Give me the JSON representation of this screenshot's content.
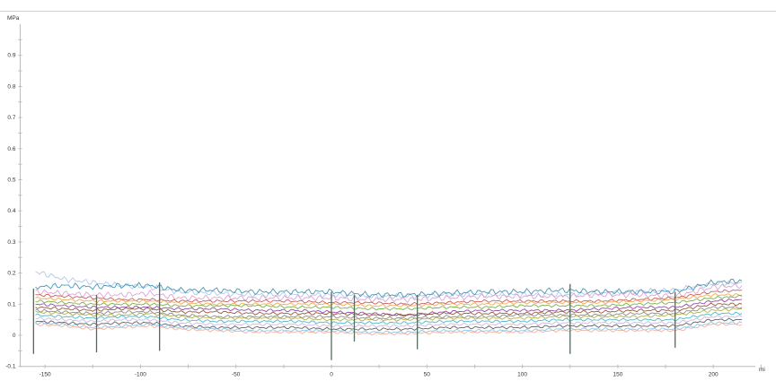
{
  "chart_data": {
    "type": "line",
    "title": "",
    "ylabel": "MPa",
    "xlabel": "mi",
    "xlim": [
      -163,
      222
    ],
    "ylim": [
      -0.1,
      1.0
    ],
    "grid": false,
    "x_ticks": [
      -150,
      -100,
      -50,
      0,
      50,
      100,
      150,
      200
    ],
    "y_ticks": [
      -0.1,
      0,
      0.1,
      0.2,
      0.3,
      0.4,
      0.5,
      0.6,
      0.7,
      0.8,
      0.9
    ],
    "x": [
      -155,
      -140,
      -125,
      -110,
      -95,
      -80,
      -60,
      -40,
      -20,
      0,
      20,
      40,
      60,
      80,
      100,
      120,
      140,
      160,
      180,
      200,
      215
    ],
    "series": [
      {
        "color": "#a9c3e8",
        "values": [
          0.205,
          0.18,
          0.17,
          0.16,
          0.155,
          0.14,
          0.135,
          0.13,
          0.13,
          0.13,
          0.125,
          0.125,
          0.13,
          0.13,
          0.13,
          0.13,
          0.135,
          0.14,
          0.145,
          0.165,
          0.17
        ]
      },
      {
        "color": "#3a8aa8",
        "values": [
          0.155,
          0.16,
          0.155,
          0.16,
          0.16,
          0.145,
          0.145,
          0.14,
          0.14,
          0.14,
          0.13,
          0.13,
          0.135,
          0.14,
          0.14,
          0.145,
          0.14,
          0.14,
          0.14,
          0.17,
          0.175
        ]
      },
      {
        "color": "#d89ad0",
        "values": [
          0.14,
          0.135,
          0.13,
          0.13,
          0.135,
          0.12,
          0.12,
          0.12,
          0.12,
          0.12,
          0.115,
          0.115,
          0.12,
          0.125,
          0.125,
          0.125,
          0.13,
          0.13,
          0.125,
          0.155,
          0.16
        ]
      },
      {
        "color": "#c0504d",
        "values": [
          0.13,
          0.125,
          0.12,
          0.115,
          0.115,
          0.11,
          0.11,
          0.11,
          0.11,
          0.105,
          0.105,
          0.1,
          0.105,
          0.11,
          0.11,
          0.11,
          0.11,
          0.115,
          0.12,
          0.14,
          0.145
        ]
      },
      {
        "color": "#f0a040",
        "values": [
          0.12,
          0.115,
          0.11,
          0.11,
          0.11,
          0.105,
          0.1,
          0.1,
          0.1,
          0.1,
          0.095,
          0.095,
          0.1,
          0.1,
          0.105,
          0.105,
          0.105,
          0.11,
          0.115,
          0.13,
          0.13
        ]
      },
      {
        "color": "#6aaa3a",
        "values": [
          0.11,
          0.105,
          0.1,
          0.1,
          0.1,
          0.095,
          0.095,
          0.095,
          0.09,
          0.09,
          0.085,
          0.085,
          0.09,
          0.09,
          0.095,
          0.095,
          0.095,
          0.1,
          0.105,
          0.12,
          0.125
        ]
      },
      {
        "color": "#8a3a9a",
        "values": [
          0.1,
          0.095,
          0.09,
          0.09,
          0.09,
          0.085,
          0.085,
          0.08,
          0.08,
          0.075,
          0.07,
          0.065,
          0.075,
          0.08,
          0.08,
          0.08,
          0.085,
          0.09,
          0.09,
          0.11,
          0.115
        ]
      },
      {
        "color": "#8b4a2a",
        "values": [
          0.09,
          0.085,
          0.08,
          0.085,
          0.085,
          0.075,
          0.075,
          0.07,
          0.07,
          0.07,
          0.065,
          0.065,
          0.07,
          0.07,
          0.07,
          0.075,
          0.075,
          0.08,
          0.08,
          0.1,
          0.1
        ]
      },
      {
        "color": "#7f7f7f",
        "values": [
          0.08,
          0.075,
          0.07,
          0.075,
          0.075,
          0.065,
          0.06,
          0.06,
          0.06,
          0.06,
          0.055,
          0.055,
          0.06,
          0.06,
          0.065,
          0.065,
          0.065,
          0.07,
          0.07,
          0.09,
          0.09
        ]
      },
      {
        "color": "#a8a83a",
        "values": [
          0.075,
          0.07,
          0.065,
          0.065,
          0.07,
          0.06,
          0.055,
          0.055,
          0.055,
          0.05,
          0.05,
          0.05,
          0.055,
          0.055,
          0.055,
          0.06,
          0.06,
          0.06,
          0.065,
          0.08,
          0.085
        ]
      },
      {
        "color": "#3ab0c8",
        "values": [
          0.065,
          0.06,
          0.055,
          0.06,
          0.06,
          0.05,
          0.045,
          0.045,
          0.045,
          0.04,
          0.04,
          0.04,
          0.045,
          0.045,
          0.045,
          0.05,
          0.05,
          0.05,
          0.05,
          0.07,
          0.07
        ]
      },
      {
        "color": "#c8b0e0",
        "values": [
          0.055,
          0.05,
          0.045,
          0.05,
          0.05,
          0.04,
          0.035,
          0.035,
          0.035,
          0.03,
          0.03,
          0.03,
          0.035,
          0.035,
          0.035,
          0.04,
          0.04,
          0.04,
          0.04,
          0.06,
          0.06
        ]
      },
      {
        "color": "#505050",
        "values": [
          0.045,
          0.04,
          0.035,
          0.04,
          0.04,
          0.03,
          0.025,
          0.025,
          0.025,
          0.02,
          0.02,
          0.02,
          0.025,
          0.025,
          0.025,
          0.03,
          0.03,
          0.03,
          0.03,
          0.05,
          0.05
        ]
      },
      {
        "color": "#7ec0e8",
        "values": [
          0.04,
          0.035,
          0.025,
          0.03,
          0.035,
          0.025,
          0.02,
          0.015,
          0.015,
          0.015,
          0.01,
          0.01,
          0.015,
          0.015,
          0.015,
          0.02,
          0.02,
          0.02,
          0.02,
          0.04,
          0.04
        ]
      },
      {
        "color": "#f4a890",
        "values": [
          0.035,
          0.03,
          0.02,
          0.025,
          0.03,
          0.02,
          0.015,
          0.01,
          0.01,
          0.01,
          0.005,
          0.005,
          0.01,
          0.01,
          0.01,
          0.015,
          0.015,
          0.015,
          0.015,
          0.035,
          0.035
        ]
      }
    ],
    "spikes": [
      {
        "x": -156,
        "min": -0.06,
        "max": 0.15
      },
      {
        "x": -123,
        "min": -0.055,
        "max": 0.13
      },
      {
        "x": -90,
        "min": -0.05,
        "max": 0.17
      },
      {
        "x": 0,
        "min": -0.08,
        "max": 0.14
      },
      {
        "x": 12,
        "min": -0.02,
        "max": 0.13
      },
      {
        "x": 45,
        "min": -0.045,
        "max": 0.13
      },
      {
        "x": 125,
        "min": -0.06,
        "max": 0.165
      },
      {
        "x": 180,
        "min": -0.04,
        "max": 0.14
      }
    ]
  }
}
